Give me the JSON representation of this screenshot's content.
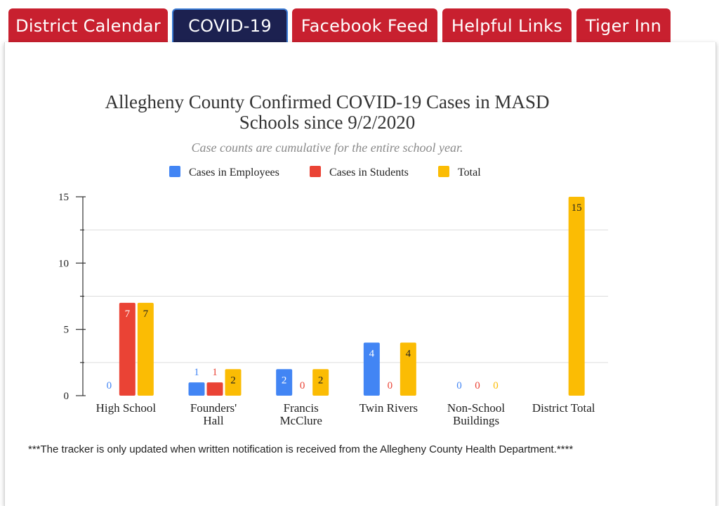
{
  "tabs": [
    {
      "label": "District Calendar",
      "active": false
    },
    {
      "label": "COVID-19",
      "active": true
    },
    {
      "label": "Facebook Feed",
      "active": false
    },
    {
      "label": "Helpful Links",
      "active": false
    },
    {
      "label": "Tiger Inn",
      "active": false
    }
  ],
  "colors": {
    "employees": "#4285f4",
    "students": "#ea4335",
    "total": "#fbbc04",
    "tab": "#c8202f",
    "tab_active": "#1c2150"
  },
  "chart_data": {
    "type": "bar",
    "title_lines": [
      "Allegheny County Confirmed COVID-19 Cases in MASD",
      "Schools since 9/2/2020"
    ],
    "subtitle": "Case counts are cumulative for the entire school year.",
    "categories": [
      {
        "lines": [
          "High School"
        ]
      },
      {
        "lines": [
          "Founders'",
          "Hall"
        ]
      },
      {
        "lines": [
          "Francis",
          "McClure"
        ]
      },
      {
        "lines": [
          "Twin Rivers"
        ]
      },
      {
        "lines": [
          "Non-School",
          "Buildings"
        ]
      },
      {
        "lines": [
          "District Total"
        ]
      }
    ],
    "series": [
      {
        "name": "Cases in Employees",
        "color": "#4285f4",
        "values": [
          0,
          1,
          2,
          4,
          0,
          null
        ]
      },
      {
        "name": "Cases in Students",
        "color": "#ea4335",
        "values": [
          7,
          1,
          0,
          0,
          0,
          null
        ]
      },
      {
        "name": "Total",
        "color": "#fbbc04",
        "values": [
          7,
          2,
          2,
          4,
          0,
          15
        ]
      }
    ],
    "yticks": [
      "0",
      "5",
      "10",
      "15"
    ],
    "ylim": [
      0,
      15
    ],
    "legend_position": "top-center",
    "grid": true
  },
  "footnote": "***The tracker is only updated when written notification is received from the Allegheny County Health Department.****"
}
